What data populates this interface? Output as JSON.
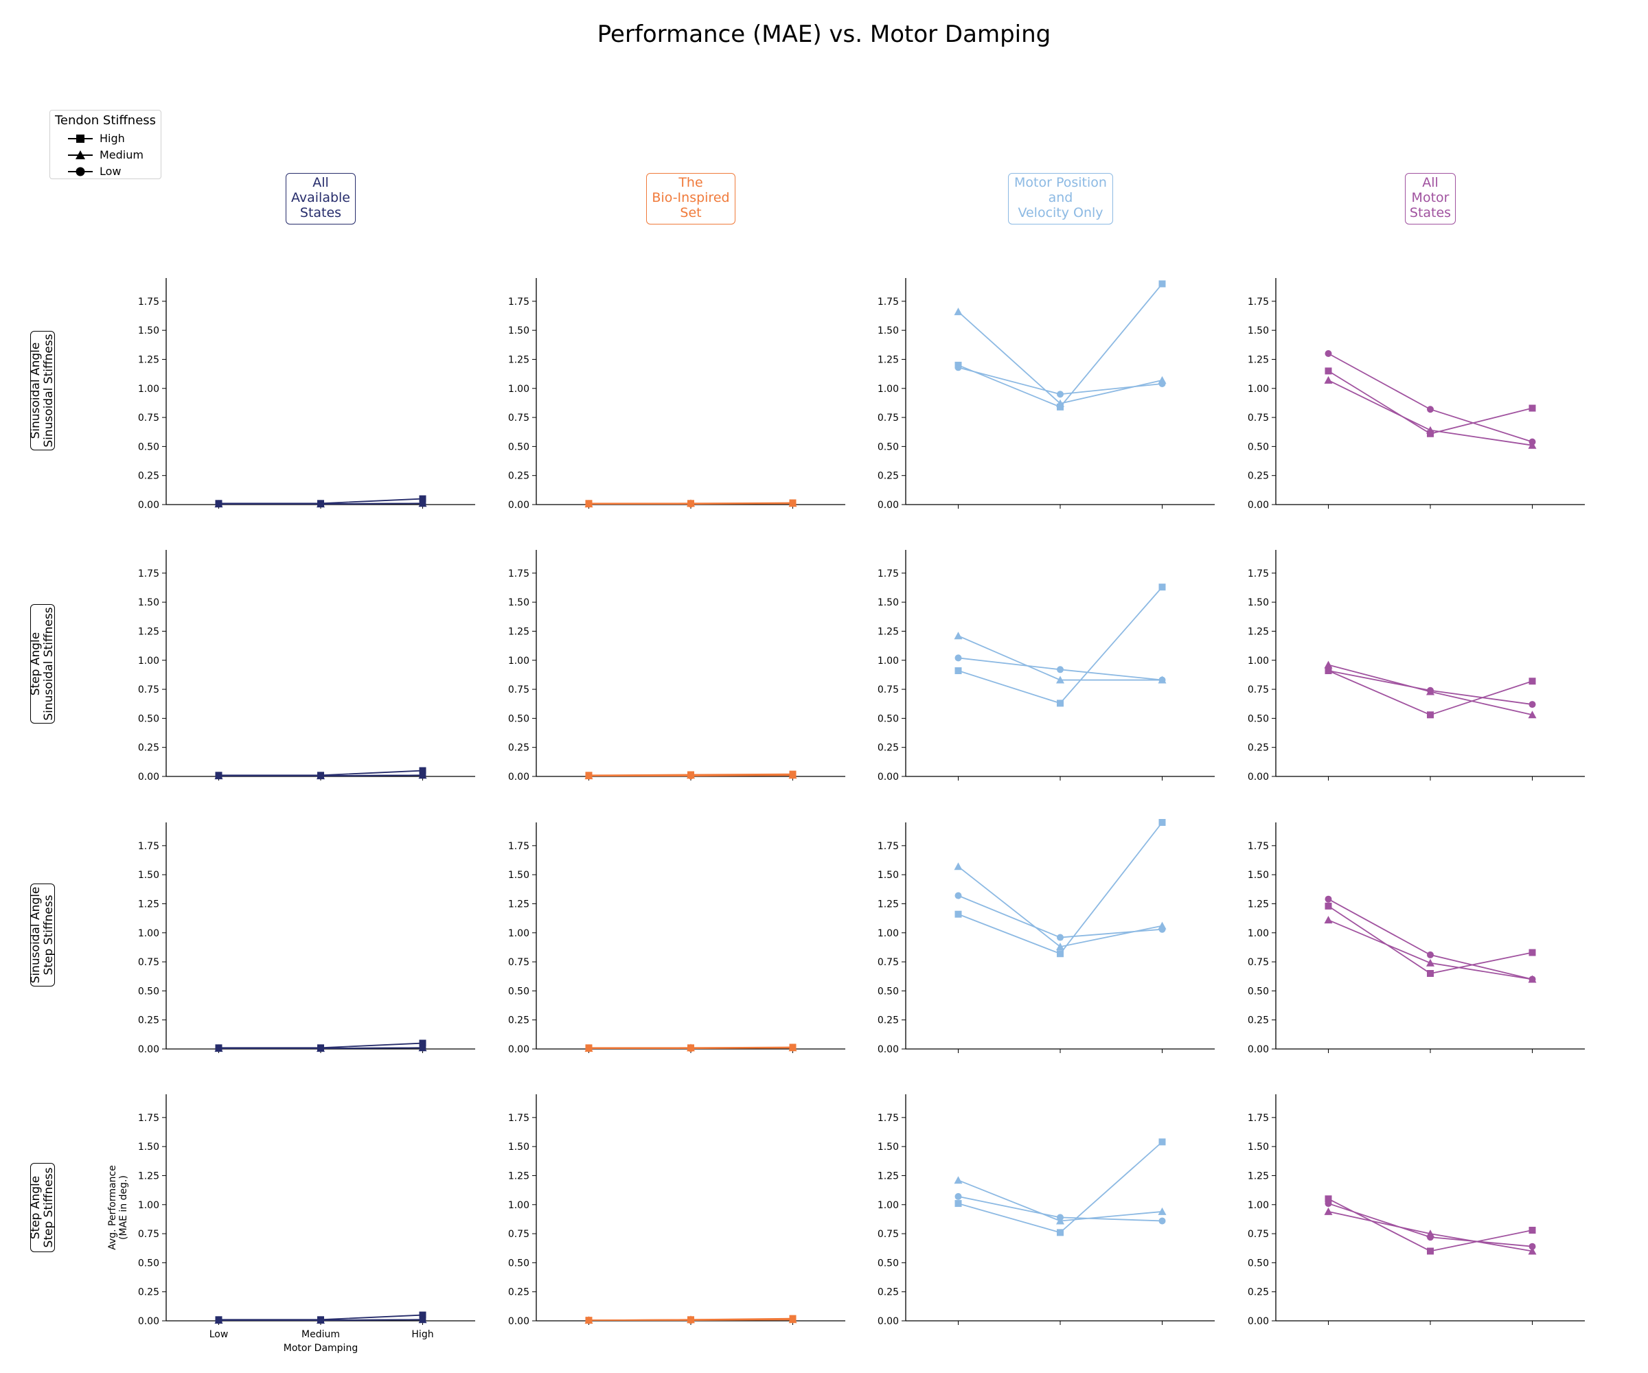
{
  "title": "Performance (MAE) vs. Motor Damping",
  "legend": {
    "title": "Tendon Stiffness",
    "placement": "top-left",
    "entries": [
      {
        "label": "High",
        "marker": "square"
      },
      {
        "label": "Medium",
        "marker": "triangle"
      },
      {
        "label": "Low",
        "marker": "circle"
      }
    ]
  },
  "columns": [
    {
      "label": "All\nAvailable\nStates",
      "color": "#262c6b"
    },
    {
      "label": "The\nBio-Inspired\nSet",
      "color": "#f07a3a"
    },
    {
      "label": "Motor Position\nand\nVelocity Only",
      "color": "#8cb9e3"
    },
    {
      "label": "All\nMotor\nStates",
      "color": "#a0529f"
    }
  ],
  "rows": [
    {
      "label": "Sinusoidal Angle\nSinusoidal Stiffness"
    },
    {
      "label": "Step Angle\nSinusoidal Stiffness"
    },
    {
      "label": "Sinusoidal Angle\nStep Stiffness"
    },
    {
      "label": "Step Angle\nStep Stiffness"
    }
  ],
  "chart_data": {
    "type": "line",
    "layout": "4x4 grid",
    "categories": [
      "Low",
      "Medium",
      "High"
    ],
    "xlabel": "Motor Damping",
    "ylabel": "Avg. Performance\n(MAE in deg.)",
    "ylim": [
      0,
      1.95
    ],
    "yticks": [
      "0.00",
      "0.25",
      "0.50",
      "0.75",
      "1.00",
      "1.25",
      "1.50",
      "1.75"
    ],
    "grid": false,
    "panels": [
      [
        {
          "series": [
            {
              "stiffness": "High",
              "marker": "square",
              "values": [
                0.01,
                0.01,
                0.05
              ]
            },
            {
              "stiffness": "Medium",
              "marker": "triangle",
              "values": [
                0.005,
                0.005,
                0.01
              ]
            },
            {
              "stiffness": "Low",
              "marker": "circle",
              "values": [
                0.005,
                0.005,
                0.01
              ]
            }
          ]
        },
        {
          "series": [
            {
              "stiffness": "High",
              "marker": "square",
              "values": [
                0.01,
                0.01,
                0.015
              ]
            },
            {
              "stiffness": "Medium",
              "marker": "triangle",
              "values": [
                0.005,
                0.01,
                0.01
              ]
            },
            {
              "stiffness": "Low",
              "marker": "circle",
              "values": [
                0.005,
                0.005,
                0.01
              ]
            }
          ]
        },
        {
          "series": [
            {
              "stiffness": "High",
              "marker": "square",
              "values": [
                1.2,
                0.84,
                1.9
              ]
            },
            {
              "stiffness": "Medium",
              "marker": "triangle",
              "values": [
                1.66,
                0.87,
                1.07
              ]
            },
            {
              "stiffness": "Low",
              "marker": "circle",
              "values": [
                1.18,
                0.95,
                1.04
              ]
            }
          ]
        },
        {
          "series": [
            {
              "stiffness": "High",
              "marker": "square",
              "values": [
                1.15,
                0.61,
                0.83
              ]
            },
            {
              "stiffness": "Medium",
              "marker": "triangle",
              "values": [
                1.07,
                0.64,
                0.51
              ]
            },
            {
              "stiffness": "Low",
              "marker": "circle",
              "values": [
                1.3,
                0.82,
                0.54
              ]
            }
          ]
        }
      ],
      [
        {
          "series": [
            {
              "stiffness": "High",
              "marker": "square",
              "values": [
                0.01,
                0.01,
                0.05
              ]
            },
            {
              "stiffness": "Medium",
              "marker": "triangle",
              "values": [
                0.005,
                0.005,
                0.01
              ]
            },
            {
              "stiffness": "Low",
              "marker": "circle",
              "values": [
                0.005,
                0.005,
                0.01
              ]
            }
          ]
        },
        {
          "series": [
            {
              "stiffness": "High",
              "marker": "square",
              "values": [
                0.01,
                0.015,
                0.02
              ]
            },
            {
              "stiffness": "Medium",
              "marker": "triangle",
              "values": [
                0.005,
                0.01,
                0.01
              ]
            },
            {
              "stiffness": "Low",
              "marker": "circle",
              "values": [
                0.005,
                0.005,
                0.01
              ]
            }
          ]
        },
        {
          "series": [
            {
              "stiffness": "High",
              "marker": "square",
              "values": [
                0.91,
                0.63,
                1.63
              ]
            },
            {
              "stiffness": "Medium",
              "marker": "triangle",
              "values": [
                1.21,
                0.83,
                0.83
              ]
            },
            {
              "stiffness": "Low",
              "marker": "circle",
              "values": [
                1.02,
                0.92,
                0.83
              ]
            }
          ]
        },
        {
          "series": [
            {
              "stiffness": "High",
              "marker": "square",
              "values": [
                0.91,
                0.53,
                0.82
              ]
            },
            {
              "stiffness": "Medium",
              "marker": "triangle",
              "values": [
                0.96,
                0.73,
                0.53
              ]
            },
            {
              "stiffness": "Low",
              "marker": "circle",
              "values": [
                0.91,
                0.74,
                0.62
              ]
            }
          ]
        }
      ],
      [
        {
          "series": [
            {
              "stiffness": "High",
              "marker": "square",
              "values": [
                0.01,
                0.01,
                0.05
              ]
            },
            {
              "stiffness": "Medium",
              "marker": "triangle",
              "values": [
                0.005,
                0.005,
                0.01
              ]
            },
            {
              "stiffness": "Low",
              "marker": "circle",
              "values": [
                0.005,
                0.005,
                0.01
              ]
            }
          ]
        },
        {
          "series": [
            {
              "stiffness": "High",
              "marker": "square",
              "values": [
                0.01,
                0.01,
                0.015
              ]
            },
            {
              "stiffness": "Medium",
              "marker": "triangle",
              "values": [
                0.005,
                0.01,
                0.01
              ]
            },
            {
              "stiffness": "Low",
              "marker": "circle",
              "values": [
                0.005,
                0.005,
                0.01
              ]
            }
          ]
        },
        {
          "series": [
            {
              "stiffness": "High",
              "marker": "square",
              "values": [
                1.16,
                0.82,
                1.95
              ]
            },
            {
              "stiffness": "Medium",
              "marker": "triangle",
              "values": [
                1.57,
                0.88,
                1.06
              ]
            },
            {
              "stiffness": "Low",
              "marker": "circle",
              "values": [
                1.32,
                0.96,
                1.03
              ]
            }
          ]
        },
        {
          "series": [
            {
              "stiffness": "High",
              "marker": "square",
              "values": [
                1.23,
                0.65,
                0.83
              ]
            },
            {
              "stiffness": "Medium",
              "marker": "triangle",
              "values": [
                1.11,
                0.74,
                0.6
              ]
            },
            {
              "stiffness": "Low",
              "marker": "circle",
              "values": [
                1.29,
                0.81,
                0.6
              ]
            }
          ]
        }
      ],
      [
        {
          "series": [
            {
              "stiffness": "High",
              "marker": "square",
              "values": [
                0.01,
                0.01,
                0.05
              ]
            },
            {
              "stiffness": "Medium",
              "marker": "triangle",
              "values": [
                0.005,
                0.005,
                0.01
              ]
            },
            {
              "stiffness": "Low",
              "marker": "circle",
              "values": [
                0.005,
                0.005,
                0.01
              ]
            }
          ]
        },
        {
          "series": [
            {
              "stiffness": "High",
              "marker": "square",
              "values": [
                0.005,
                0.01,
                0.02
              ]
            },
            {
              "stiffness": "Medium",
              "marker": "triangle",
              "values": [
                0.005,
                0.01,
                0.01
              ]
            },
            {
              "stiffness": "Low",
              "marker": "circle",
              "values": [
                0.005,
                0.005,
                0.01
              ]
            }
          ]
        },
        {
          "series": [
            {
              "stiffness": "High",
              "marker": "square",
              "values": [
                1.01,
                0.76,
                1.54
              ]
            },
            {
              "stiffness": "Medium",
              "marker": "triangle",
              "values": [
                1.21,
                0.86,
                0.94
              ]
            },
            {
              "stiffness": "Low",
              "marker": "circle",
              "values": [
                1.07,
                0.89,
                0.86
              ]
            }
          ]
        },
        {
          "series": [
            {
              "stiffness": "High",
              "marker": "square",
              "values": [
                1.05,
                0.6,
                0.78
              ]
            },
            {
              "stiffness": "Medium",
              "marker": "triangle",
              "values": [
                0.94,
                0.75,
                0.6
              ]
            },
            {
              "stiffness": "Low",
              "marker": "circle",
              "values": [
                1.01,
                0.72,
                0.64
              ]
            }
          ]
        }
      ]
    ]
  }
}
